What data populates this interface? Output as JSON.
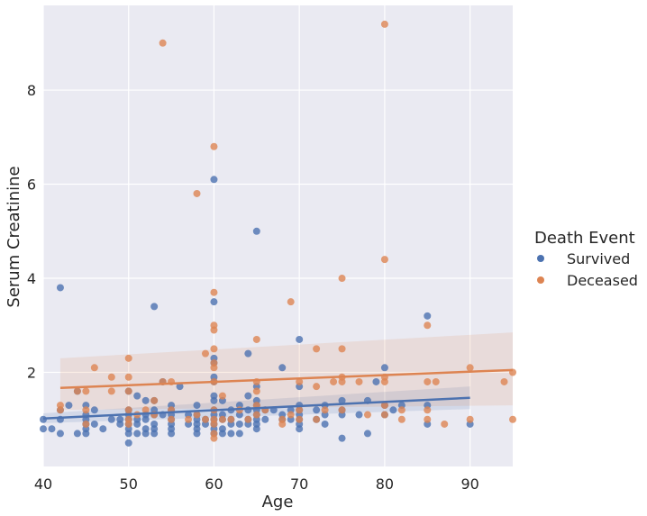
{
  "chart_data": {
    "type": "scatter",
    "title": "",
    "xlabel": "Age",
    "ylabel": "Serum Creatinine",
    "xlim": [
      40,
      95
    ],
    "ylim": [
      0,
      9.8
    ],
    "xticks": [
      40,
      50,
      60,
      70,
      80,
      90
    ],
    "yticks": [
      2,
      4,
      6,
      8
    ],
    "grid": true,
    "legend": {
      "title": "Death Event",
      "position": "right"
    },
    "series": [
      {
        "name": "Survived",
        "color": "#4c72b0",
        "points": [
          [
            40,
            0.8
          ],
          [
            40,
            1.0
          ],
          [
            41,
            0.8
          ],
          [
            42,
            3.8
          ],
          [
            42,
            1.2
          ],
          [
            42,
            1.0
          ],
          [
            42,
            0.7
          ],
          [
            43,
            1.3
          ],
          [
            44,
            1.6
          ],
          [
            44,
            0.7
          ],
          [
            45,
            1.3
          ],
          [
            45,
            1.1
          ],
          [
            45,
            1.0
          ],
          [
            45,
            0.9
          ],
          [
            45,
            0.8
          ],
          [
            45,
            0.7
          ],
          [
            46,
            1.2
          ],
          [
            46,
            0.9
          ],
          [
            47,
            0.8
          ],
          [
            48,
            1.0
          ],
          [
            49,
            0.9
          ],
          [
            49,
            1.0
          ],
          [
            50,
            1.6
          ],
          [
            50,
            1.2
          ],
          [
            50,
            1.1
          ],
          [
            50,
            1.0
          ],
          [
            50,
            0.9
          ],
          [
            50,
            0.8
          ],
          [
            50,
            0.7
          ],
          [
            50,
            0.5
          ],
          [
            51,
            1.5
          ],
          [
            51,
            1.0
          ],
          [
            51,
            0.9
          ],
          [
            51,
            0.7
          ],
          [
            52,
            1.4
          ],
          [
            52,
            1.1
          ],
          [
            52,
            1.0
          ],
          [
            52,
            0.8
          ],
          [
            52,
            0.7
          ],
          [
            53,
            3.4
          ],
          [
            53,
            1.4
          ],
          [
            53,
            1.2
          ],
          [
            53,
            1.1
          ],
          [
            53,
            0.9
          ],
          [
            53,
            0.8
          ],
          [
            53,
            0.7
          ],
          [
            54,
            1.8
          ],
          [
            54,
            1.1
          ],
          [
            55,
            1.3
          ],
          [
            55,
            1.2
          ],
          [
            55,
            1.1
          ],
          [
            55,
            1.0
          ],
          [
            55,
            0.9
          ],
          [
            55,
            0.8
          ],
          [
            55,
            0.7
          ],
          [
            56,
            1.7
          ],
          [
            57,
            1.1
          ],
          [
            57,
            0.9
          ],
          [
            58,
            1.3
          ],
          [
            58,
            1.1
          ],
          [
            58,
            1.0
          ],
          [
            58,
            0.9
          ],
          [
            58,
            0.8
          ],
          [
            58,
            0.7
          ],
          [
            59,
            1.0
          ],
          [
            59,
            0.9
          ],
          [
            60,
            6.1
          ],
          [
            60,
            3.5
          ],
          [
            60,
            2.3
          ],
          [
            60,
            2.2
          ],
          [
            60,
            1.9
          ],
          [
            60,
            1.8
          ],
          [
            60,
            1.5
          ],
          [
            60,
            1.4
          ],
          [
            60,
            1.2
          ],
          [
            60,
            1.1
          ],
          [
            60,
            1.0
          ],
          [
            60,
            0.9
          ],
          [
            60,
            0.8
          ],
          [
            60,
            0.7
          ],
          [
            61,
            1.4
          ],
          [
            61,
            1.1
          ],
          [
            61,
            1.0
          ],
          [
            61,
            0.8
          ],
          [
            61,
            0.7
          ],
          [
            62,
            1.2
          ],
          [
            62,
            1.0
          ],
          [
            62,
            0.9
          ],
          [
            62,
            0.7
          ],
          [
            63,
            1.3
          ],
          [
            63,
            1.1
          ],
          [
            63,
            0.9
          ],
          [
            63,
            0.7
          ],
          [
            64,
            2.4
          ],
          [
            64,
            1.5
          ],
          [
            64,
            1.2
          ],
          [
            64,
            1.0
          ],
          [
            64,
            0.9
          ],
          [
            65,
            5.0
          ],
          [
            65,
            1.7
          ],
          [
            65,
            1.4
          ],
          [
            65,
            1.3
          ],
          [
            65,
            1.2
          ],
          [
            65,
            1.1
          ],
          [
            65,
            1.0
          ],
          [
            65,
            0.9
          ],
          [
            65,
            0.8
          ],
          [
            66,
            1.2
          ],
          [
            66,
            1.0
          ],
          [
            67,
            1.2
          ],
          [
            68,
            2.1
          ],
          [
            68,
            1.1
          ],
          [
            68,
            1.0
          ],
          [
            69,
            1.2
          ],
          [
            69,
            1.0
          ],
          [
            70,
            2.7
          ],
          [
            70,
            1.7
          ],
          [
            70,
            1.3
          ],
          [
            70,
            1.2
          ],
          [
            70,
            1.1
          ],
          [
            70,
            1.0
          ],
          [
            70,
            0.9
          ],
          [
            70,
            0.8
          ],
          [
            72,
            1.2
          ],
          [
            72,
            1.0
          ],
          [
            73,
            1.3
          ],
          [
            73,
            1.1
          ],
          [
            73,
            0.9
          ],
          [
            75,
            1.4
          ],
          [
            75,
            1.2
          ],
          [
            75,
            1.1
          ],
          [
            75,
            0.6
          ],
          [
            77,
            1.1
          ],
          [
            78,
            1.4
          ],
          [
            78,
            0.7
          ],
          [
            79,
            1.8
          ],
          [
            80,
            2.1
          ],
          [
            80,
            1.3
          ],
          [
            80,
            1.1
          ],
          [
            81,
            1.2
          ],
          [
            82,
            1.3
          ],
          [
            85,
            3.2
          ],
          [
            85,
            1.3
          ],
          [
            85,
            0.9
          ],
          [
            90,
            0.9
          ]
        ]
      },
      {
        "name": "Deceased",
        "color": "#dd8452",
        "points": [
          [
            42,
            1.3
          ],
          [
            42,
            1.2
          ],
          [
            44,
            1.6
          ],
          [
            45,
            1.6
          ],
          [
            45,
            1.2
          ],
          [
            45,
            0.9
          ],
          [
            46,
            2.1
          ],
          [
            48,
            1.9
          ],
          [
            48,
            1.6
          ],
          [
            50,
            2.3
          ],
          [
            50,
            1.9
          ],
          [
            50,
            1.6
          ],
          [
            50,
            1.2
          ],
          [
            50,
            1.0
          ],
          [
            50,
            0.9
          ],
          [
            51,
            1.1
          ],
          [
            52,
            1.2
          ],
          [
            53,
            1.4
          ],
          [
            53,
            1.1
          ],
          [
            54,
            9.0
          ],
          [
            54,
            1.8
          ],
          [
            55,
            1.8
          ],
          [
            55,
            1.2
          ],
          [
            55,
            1.0
          ],
          [
            57,
            1.0
          ],
          [
            58,
            5.8
          ],
          [
            58,
            1.1
          ],
          [
            59,
            2.4
          ],
          [
            59,
            1.0
          ],
          [
            60,
            6.8
          ],
          [
            60,
            3.7
          ],
          [
            60,
            3.0
          ],
          [
            60,
            2.9
          ],
          [
            60,
            2.5
          ],
          [
            60,
            2.2
          ],
          [
            60,
            2.1
          ],
          [
            60,
            1.8
          ],
          [
            60,
            1.2
          ],
          [
            60,
            1.0
          ],
          [
            60,
            0.9
          ],
          [
            60,
            0.7
          ],
          [
            60,
            0.6
          ],
          [
            61,
            1.5
          ],
          [
            61,
            1.0
          ],
          [
            62,
            1.0
          ],
          [
            63,
            1.2
          ],
          [
            64,
            1.0
          ],
          [
            65,
            2.7
          ],
          [
            65,
            1.8
          ],
          [
            65,
            1.6
          ],
          [
            65,
            1.3
          ],
          [
            65,
            1.1
          ],
          [
            66,
            1.2
          ],
          [
            68,
            1.0
          ],
          [
            68,
            0.9
          ],
          [
            69,
            3.5
          ],
          [
            69,
            1.1
          ],
          [
            70,
            1.8
          ],
          [
            70,
            1.2
          ],
          [
            70,
            1.0
          ],
          [
            72,
            2.5
          ],
          [
            72,
            1.7
          ],
          [
            72,
            1.0
          ],
          [
            73,
            1.2
          ],
          [
            74,
            1.8
          ],
          [
            75,
            4.0
          ],
          [
            75,
            2.5
          ],
          [
            75,
            1.9
          ],
          [
            75,
            1.8
          ],
          [
            75,
            1.2
          ],
          [
            77,
            1.8
          ],
          [
            78,
            1.1
          ],
          [
            80,
            9.4
          ],
          [
            80,
            4.4
          ],
          [
            80,
            1.9
          ],
          [
            80,
            1.8
          ],
          [
            80,
            1.3
          ],
          [
            80,
            1.1
          ],
          [
            82,
            1.2
          ],
          [
            82,
            1.0
          ],
          [
            85,
            3.0
          ],
          [
            85,
            1.8
          ],
          [
            85,
            1.2
          ],
          [
            85,
            1.0
          ],
          [
            86,
            1.8
          ],
          [
            87,
            0.9
          ],
          [
            90,
            2.1
          ],
          [
            90,
            1.0
          ],
          [
            94,
            1.8
          ],
          [
            95,
            2.0
          ],
          [
            95,
            1.0
          ]
        ]
      }
    ],
    "regression": [
      {
        "name": "Survived",
        "x_range": [
          40,
          90
        ],
        "y_at": [
          1.02,
          1.46
        ],
        "ci_start": [
          0.92,
          1.13
        ],
        "ci_end": [
          1.22,
          1.7
        ]
      },
      {
        "name": "Deceased",
        "x_range": [
          42,
          95
        ],
        "y_at": [
          1.67,
          2.05
        ],
        "ci_start": [
          1.2,
          2.3
        ],
        "ci_end": [
          1.3,
          2.85
        ]
      }
    ]
  }
}
